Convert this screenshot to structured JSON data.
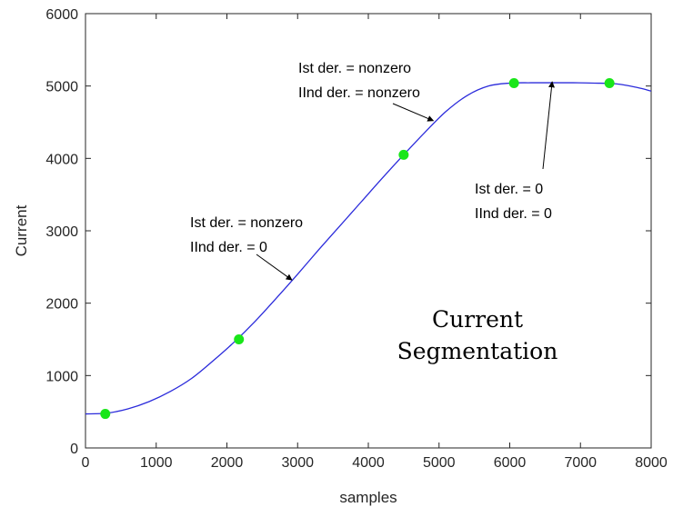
{
  "chart_data": {
    "type": "line",
    "xlabel": "samples",
    "ylabel": "Current",
    "xlim": [
      0,
      8000
    ],
    "ylim": [
      0,
      6000
    ],
    "xticks": [
      0,
      1000,
      2000,
      3000,
      4000,
      5000,
      6000,
      7000,
      8000
    ],
    "yticks": [
      0,
      1000,
      2000,
      3000,
      4000,
      5000,
      6000
    ],
    "grid": false,
    "colors": {
      "line": "#2b2bdb",
      "points": "#19e619",
      "axes": "#262626"
    },
    "series": [
      {
        "x": [
          0,
          300,
          600,
          900,
          1200,
          1500,
          1800,
          2100,
          2400,
          2700,
          3000,
          3300,
          3600,
          3900,
          4200,
          4500,
          4800,
          5100,
          5400,
          5700,
          6000,
          6300,
          6600,
          6900,
          7200,
          7500,
          7800,
          8000
        ],
        "y": [
          470,
          480,
          540,
          640,
          780,
          960,
          1200,
          1460,
          1750,
          2070,
          2400,
          2740,
          3070,
          3400,
          3730,
          4050,
          4360,
          4650,
          4870,
          5000,
          5040,
          5045,
          5045,
          5045,
          5040,
          5030,
          4980,
          4930
        ]
      }
    ],
    "points": {
      "x": [
        280,
        2170,
        4500,
        6060,
        7410
      ],
      "y": [
        470,
        1500,
        4050,
        5040,
        5040
      ]
    },
    "annotations": [
      {
        "lines": [
          "Ist der. = nonzero",
          "IInd der. = nonzero"
        ],
        "arrow_to": [
          4920,
          4520
        ]
      },
      {
        "lines": [
          "Ist der. = nonzero",
          "IInd der. = 0"
        ],
        "arrow_to": [
          2920,
          2320
        ]
      },
      {
        "lines": [
          "Ist der. = 0",
          "IInd der. = 0"
        ],
        "arrow_to": [
          6600,
          5060
        ]
      },
      {
        "lines": [
          "Current",
          "Segmentation"
        ]
      }
    ]
  }
}
